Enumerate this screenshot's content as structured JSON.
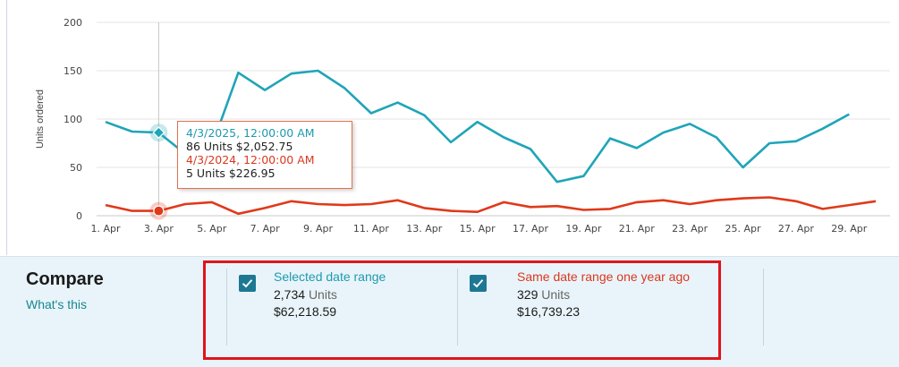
{
  "chart_data": {
    "type": "line",
    "ylabel": "Units ordered",
    "ylim": [
      0,
      200
    ],
    "yticks": [
      0,
      50,
      100,
      150,
      200
    ],
    "x": [
      1,
      2,
      3,
      4,
      5,
      6,
      7,
      8,
      9,
      10,
      11,
      12,
      13,
      14,
      15,
      16,
      17,
      18,
      19,
      20,
      21,
      22,
      23,
      24,
      25,
      26,
      27,
      28,
      29,
      30
    ],
    "xtick_labels": [
      "1. Apr",
      "3. Apr",
      "5. Apr",
      "7. Apr",
      "9. Apr",
      "11. Apr",
      "13. Apr",
      "15. Apr",
      "17. Apr",
      "19. Apr",
      "21. Apr",
      "23. Apr",
      "25. Apr",
      "27. Apr",
      "29. Apr"
    ],
    "series": [
      {
        "color": "#1fa5b8",
        "values": [
          97,
          87,
          86,
          64,
          72,
          148,
          130,
          147,
          150,
          132,
          106,
          117,
          104,
          76,
          97,
          81,
          69,
          35,
          41,
          80,
          70,
          86,
          95,
          81,
          50,
          75,
          77,
          90,
          105,
          null
        ]
      },
      {
        "color": "#e0391a",
        "values": [
          11,
          5,
          5,
          12,
          14,
          2,
          8,
          15,
          12,
          11,
          12,
          16,
          8,
          5,
          4,
          14,
          9,
          10,
          6,
          7,
          14,
          16,
          12,
          16,
          18,
          19,
          15,
          7,
          11,
          15
        ]
      }
    ],
    "hover": {
      "x": 3
    }
  },
  "tooltip": {
    "current_date": "4/3/2025, 12:00:00 AM",
    "current_value": "86 Units $2,052.75",
    "previous_date": "4/3/2024, 12:00:00 AM",
    "previous_value": "5 Units $226.95"
  },
  "compare": {
    "title": "Compare",
    "whats_this": "What's this",
    "selected": {
      "label": "Selected date range",
      "units_value": "2,734",
      "units_word": "Units",
      "amount": "$62,218.59"
    },
    "previous": {
      "label": "Same date range one year ago",
      "units_value": "329",
      "units_word": "Units",
      "amount": "$16,739.23"
    }
  }
}
